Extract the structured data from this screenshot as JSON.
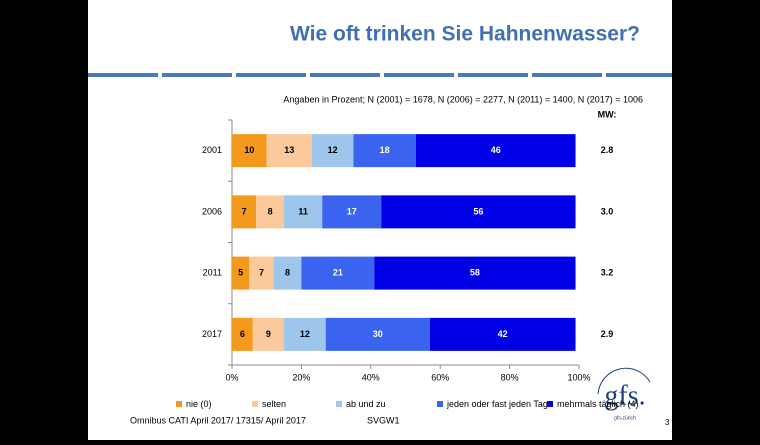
{
  "chart_data": {
    "type": "bar",
    "orientation": "horizontal",
    "stacked": true,
    "title": "Wie oft trinken Sie Hahnenwasser?",
    "subtitle": "Angaben in Prozent; N (2001) = 1678, N (2006) = 2277, N (2011) = 1400, N (2017) = 1006",
    "categories": [
      "2001",
      "2006",
      "2011",
      "2017"
    ],
    "series": [
      {
        "name": "nie (0)",
        "color": "#f39a1e",
        "label_color": "#000000",
        "values": [
          10,
          7,
          5,
          6
        ]
      },
      {
        "name": "selten",
        "color": "#fbc99b",
        "label_color": "#000000",
        "values": [
          13,
          8,
          7,
          9
        ]
      },
      {
        "name": "ab und zu",
        "color": "#9ec5ec",
        "label_color": "#000000",
        "values": [
          12,
          11,
          8,
          12
        ]
      },
      {
        "name": "jeden oder fast jeden Tag",
        "color": "#3a64f0",
        "label_color": "#ffffff",
        "values": [
          18,
          17,
          21,
          30
        ]
      },
      {
        "name": "mehrmals täglich (4)",
        "color": "#0000e6",
        "label_color": "#ffffff",
        "values": [
          46,
          56,
          58,
          42
        ]
      }
    ],
    "xlim": [
      0,
      100
    ],
    "xticks": [
      {
        "value": 0,
        "label": "0%"
      },
      {
        "value": 20,
        "label": "20%"
      },
      {
        "value": 40,
        "label": "40%"
      },
      {
        "value": 60,
        "label": "60%"
      },
      {
        "value": 80,
        "label": "80%"
      },
      {
        "value": 100,
        "label": "100%"
      }
    ],
    "mw": {
      "title": "MW:",
      "values": [
        2.8,
        3,
        3.2,
        2.9
      ],
      "value_labels": [
        "2.8",
        "3.0",
        "3.2",
        "2.9"
      ]
    },
    "legend": "bottom"
  },
  "footer": {
    "source": "Omnibus CATI April 2017/ 17315/ April 2017",
    "code": "SVGW1",
    "page": "3"
  },
  "logo": {
    "mark": "gfs.",
    "sub": "gfs-zürich"
  }
}
